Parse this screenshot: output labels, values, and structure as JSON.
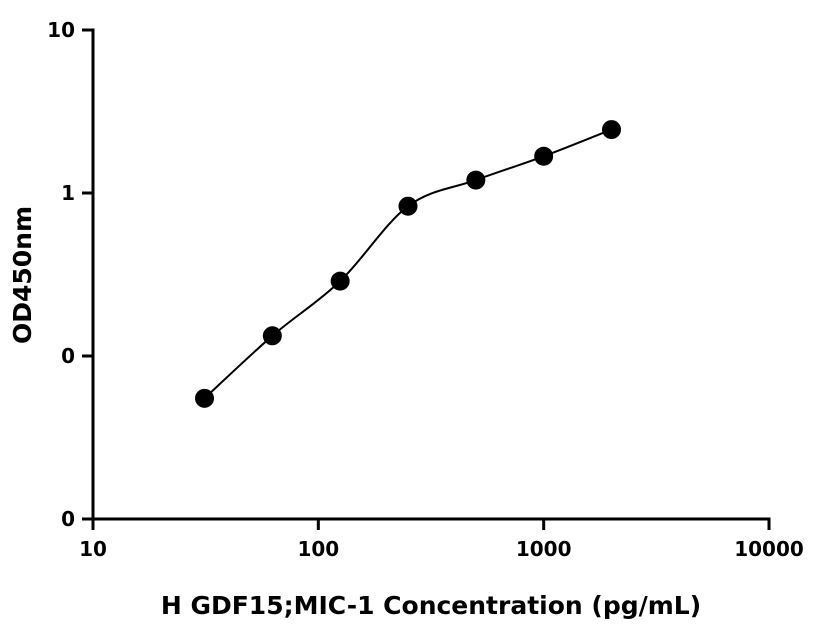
{
  "chart_data": {
    "type": "scatter",
    "title": "",
    "xlabel": "H GDF15;MIC-1 Concentration (pg/mL)",
    "ylabel": "OD450nm",
    "x_scale": "log",
    "y_scale": "log",
    "xlim": [
      10,
      10000
    ],
    "ylim": [
      0.01,
      10
    ],
    "x_ticks": [
      10,
      100,
      1000,
      10000
    ],
    "x_tick_labels": [
      "10",
      "100",
      "1000",
      "10000"
    ],
    "y_ticks": [
      0.01,
      0.1,
      1,
      10
    ],
    "y_tick_labels": [
      "0",
      "0",
      "1",
      "10"
    ],
    "grid": false,
    "legend": false,
    "series": [
      {
        "x": [
          31.25,
          62.5,
          125,
          250,
          500,
          1000,
          2000
        ],
        "y": [
          0.055,
          0.133,
          0.288,
          0.83,
          1.2,
          1.68,
          2.45
        ],
        "fit_curve": true
      }
    ],
    "colors": {
      "point": "#000000",
      "curve": "#000000",
      "axis": "#000000"
    }
  }
}
